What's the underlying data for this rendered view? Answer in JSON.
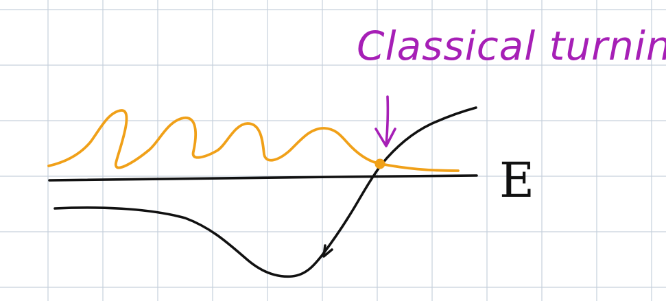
{
  "annotation": {
    "text": "Classical turning pt"
  },
  "energy_label": {
    "text": "E"
  },
  "colors": {
    "background": "#ffffff",
    "grid": "#c6d0dc",
    "black_ink": "#111111",
    "orange_ink": "#f0a018",
    "purple_ink": "#a61fb6"
  }
}
